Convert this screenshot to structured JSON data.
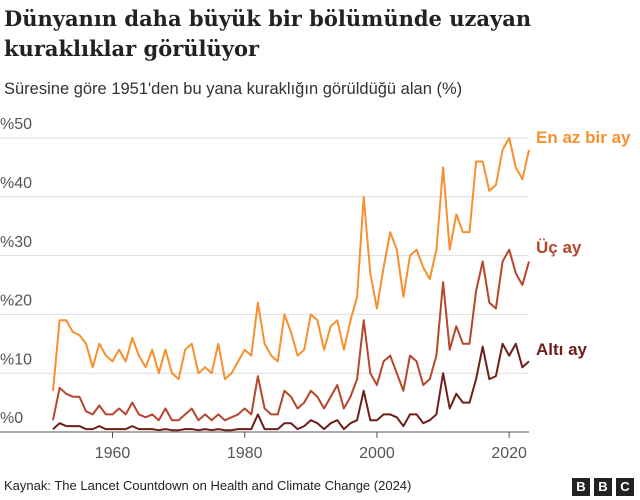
{
  "chart_data": {
    "type": "line",
    "title": "Dünyanın daha büyük bir bölümünde uzayan kuraklıklar görülüyor",
    "subtitle": "Süresine göre 1951'den bu yana kuraklığın görüldüğü alan (%)",
    "source": "Kaynak: The Lancet Countdown on Health and Climate Change (2024)",
    "x": [
      1951,
      1952,
      1953,
      1954,
      1955,
      1956,
      1957,
      1958,
      1959,
      1960,
      1961,
      1962,
      1963,
      1964,
      1965,
      1966,
      1967,
      1968,
      1969,
      1970,
      1971,
      1972,
      1973,
      1974,
      1975,
      1976,
      1977,
      1978,
      1979,
      1980,
      1981,
      1982,
      1983,
      1984,
      1985,
      1986,
      1987,
      1988,
      1989,
      1990,
      1991,
      1992,
      1993,
      1994,
      1995,
      1996,
      1997,
      1998,
      1999,
      2000,
      2001,
      2002,
      2003,
      2004,
      2005,
      2006,
      2007,
      2008,
      2009,
      2010,
      2011,
      2012,
      2013,
      2014,
      2015,
      2016,
      2017,
      2018,
      2019,
      2020,
      2021,
      2022,
      2023
    ],
    "series": [
      {
        "name": "En az bir ay",
        "color": "#f7902e",
        "values": [
          7,
          19,
          19,
          17,
          16.5,
          15,
          11,
          15,
          13,
          12,
          14,
          12,
          16,
          13,
          11,
          14,
          10,
          14,
          10,
          9,
          14,
          15,
          10,
          11,
          10,
          15,
          9,
          10,
          12,
          14,
          13,
          22,
          15,
          13,
          12,
          20,
          17,
          13,
          14,
          20,
          19,
          14,
          18,
          19,
          14,
          19,
          23,
          40,
          27,
          21,
          28,
          34,
          31,
          23,
          30,
          31,
          28,
          26,
          31,
          45,
          31,
          37,
          34,
          34,
          46,
          46,
          41,
          42,
          48,
          50,
          45,
          43,
          48
        ]
      },
      {
        "name": "Üç ay",
        "color": "#b5472c",
        "values": [
          2,
          7.5,
          6.5,
          6,
          6,
          3.5,
          3,
          4.5,
          3,
          3,
          4,
          3,
          5,
          3,
          2.5,
          3,
          2,
          4,
          2,
          2,
          3,
          4,
          2,
          3,
          2,
          3,
          2,
          2.5,
          3,
          4,
          3,
          9.5,
          4,
          3,
          3,
          7,
          6,
          4,
          5,
          7,
          6,
          4,
          6,
          8,
          4,
          6,
          9,
          19,
          10,
          8,
          12,
          13,
          10,
          7,
          13,
          12,
          8,
          9,
          13,
          25.5,
          14,
          18,
          15,
          15,
          24,
          29,
          22,
          21,
          29,
          31,
          27,
          25,
          29
        ]
      },
      {
        "name": "Altı ay",
        "color": "#6e1f1a",
        "values": [
          0.5,
          1.5,
          1,
          1,
          1,
          0.5,
          0.5,
          1,
          0.5,
          0.5,
          0.5,
          0.5,
          1,
          0.5,
          0.5,
          0.5,
          0.3,
          0.5,
          0.3,
          0.3,
          0.5,
          0.5,
          0.3,
          0.5,
          0.3,
          0.5,
          0.3,
          0.3,
          0.5,
          0.5,
          0.5,
          3,
          0.5,
          0.5,
          0.5,
          1.5,
          1.5,
          0.5,
          1,
          2,
          1.5,
          0.5,
          1.5,
          2,
          0.5,
          1.5,
          2,
          7,
          2,
          2,
          3,
          3,
          2.5,
          1,
          3,
          3,
          1.5,
          2,
          3,
          10,
          4,
          6.5,
          5,
          5,
          9,
          14.5,
          9,
          9.5,
          15,
          13,
          15,
          11,
          12
        ]
      }
    ],
    "xlim": [
      1951,
      2023
    ],
    "xticks": [
      1960,
      1980,
      2000,
      2020
    ],
    "ylim": [
      0,
      50
    ],
    "yticks": [
      {
        "value": 0,
        "label": "%0"
      },
      {
        "value": 10,
        "label": "%10"
      },
      {
        "value": 20,
        "label": "%20"
      },
      {
        "value": 30,
        "label": "%30"
      },
      {
        "value": 40,
        "label": "%40"
      },
      {
        "value": 50,
        "label": "%50"
      }
    ],
    "grid": true
  }
}
